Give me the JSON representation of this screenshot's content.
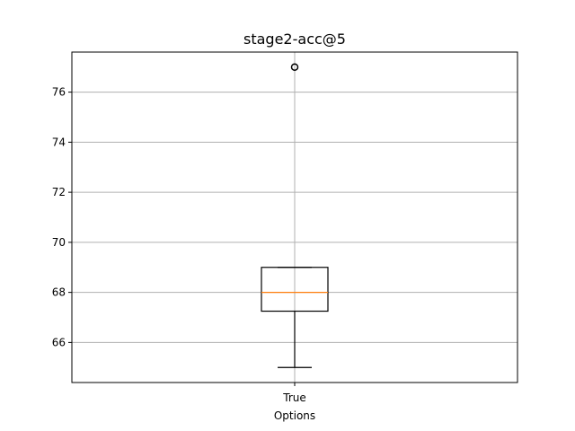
{
  "chart_data": {
    "type": "box",
    "title": "stage2-acc@5",
    "xlabel": "Options",
    "ylabel": "",
    "categories": [
      "True"
    ],
    "boxes": [
      {
        "category": "True",
        "whisker_low": 65,
        "q1": 67.25,
        "median": 68,
        "q3": 69,
        "whisker_high": 69,
        "outliers": [
          77
        ]
      }
    ],
    "ylim": [
      64.4,
      77.6
    ],
    "yticks": [
      66,
      68,
      70,
      72,
      74,
      76
    ],
    "grid": true,
    "colors": {
      "box": "#000000",
      "median": "#ff7f0e",
      "grid": "#b0b0b0",
      "outlier": "#000000"
    }
  }
}
